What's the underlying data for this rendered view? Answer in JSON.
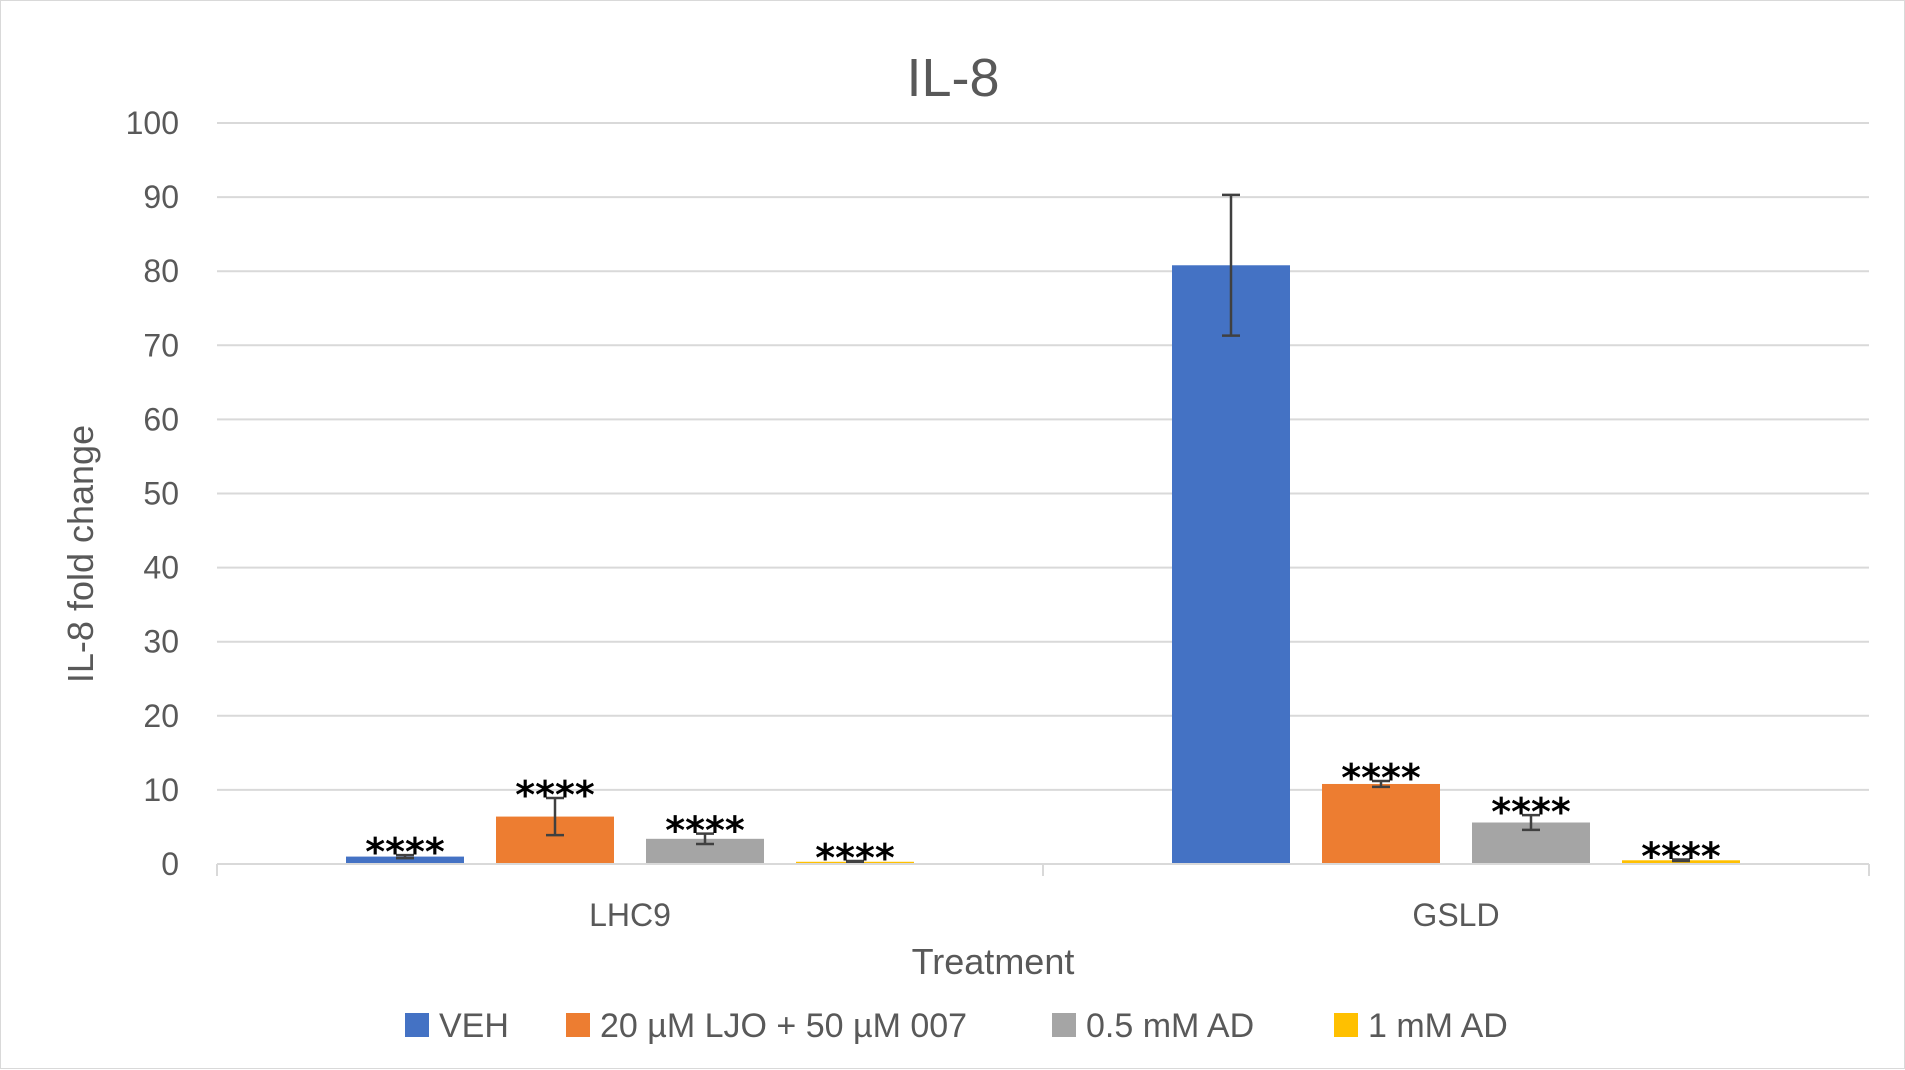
{
  "chart_data": {
    "type": "bar",
    "title": "IL-8",
    "xlabel": "Treatment",
    "ylabel": "IL-8 fold change",
    "ylim": [
      0,
      100
    ],
    "yticks": [
      0,
      10,
      20,
      30,
      40,
      50,
      60,
      70,
      80,
      90,
      100
    ],
    "grid": true,
    "legend_position": "bottom",
    "categories": [
      "LHC9",
      "GSLD"
    ],
    "series": [
      {
        "name": "VEH",
        "color": "#4472C4",
        "values": [
          1.0,
          80.8
        ],
        "errors": [
          0.2,
          9.5
        ],
        "annotations": [
          "****",
          ""
        ]
      },
      {
        "name": "20 µM LJO + 50 µM 007",
        "color": "#ED7D31",
        "values": [
          6.4,
          10.8
        ],
        "errors": [
          2.5,
          0.4
        ],
        "annotations": [
          "****",
          "****"
        ]
      },
      {
        "name": "0.5 mM AD",
        "color": "#A5A5A5",
        "values": [
          3.4,
          5.6
        ],
        "errors": [
          0.7,
          1.0
        ],
        "annotations": [
          "****",
          "****"
        ]
      },
      {
        "name": "1 mM AD",
        "color": "#FFC000",
        "values": [
          0.3,
          0.5
        ],
        "errors": [
          0.1,
          0.1
        ],
        "annotations": [
          "****",
          "****"
        ]
      }
    ]
  }
}
